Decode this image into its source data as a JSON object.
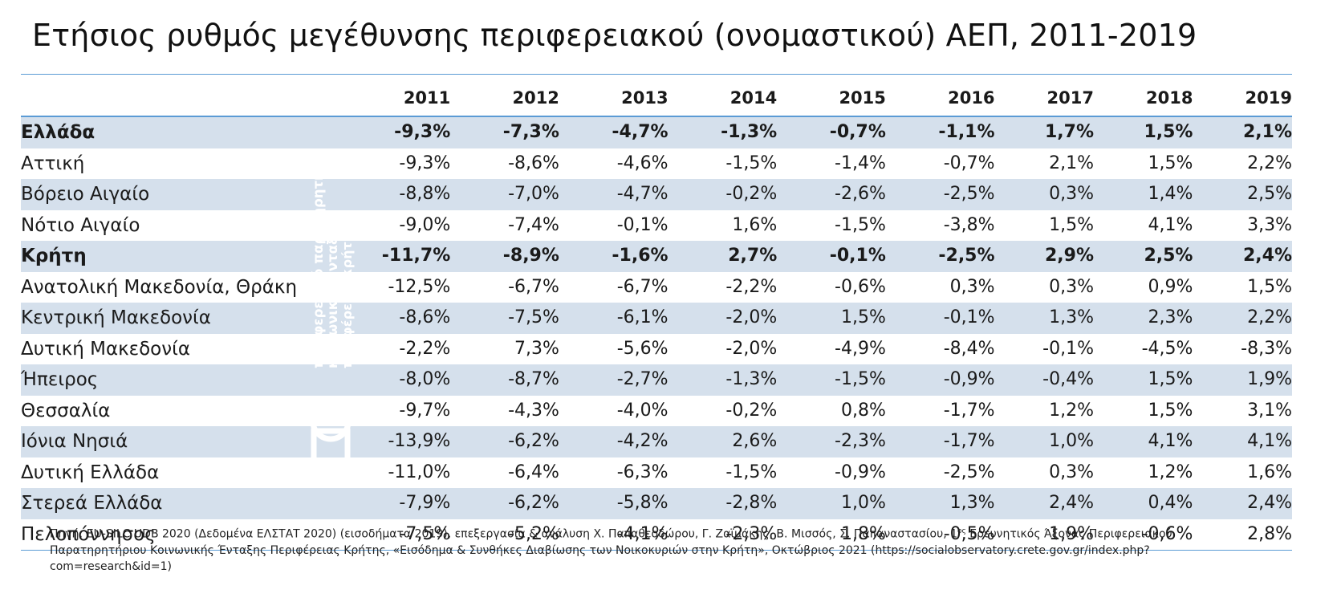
{
  "title": "Ετήσιος ρυθμός μεγέθυνσης περιφερειακού (ονομαστικού) ΑΕΠ, 2011-2019",
  "colors": {
    "accent_rule": "#5b9bd5",
    "row_band": "#d5e0ec",
    "watermark": "#ffffff"
  },
  "chart_data": {
    "type": "table",
    "title": "Ετήσιος ρυθμός μεγέθυνσης περιφερειακού (ονομαστικού) ΑΕΠ, 2011-2019",
    "columns": [
      "2011",
      "2012",
      "2013",
      "2014",
      "2015",
      "2016",
      "2017",
      "2018",
      "2019"
    ],
    "rows": [
      {
        "region": "Ελλάδα",
        "bold": true,
        "values": [
          "-9,3%",
          "-7,3%",
          "-4,7%",
          "-1,3%",
          "-0,7%",
          "-1,1%",
          "1,7%",
          "1,5%",
          "2,1%"
        ]
      },
      {
        "region": "Αττική",
        "bold": false,
        "values": [
          "-9,3%",
          "-8,6%",
          "-4,6%",
          "-1,5%",
          "-1,4%",
          "-0,7%",
          "2,1%",
          "1,5%",
          "2,2%"
        ]
      },
      {
        "region": "Βόρειο Αιγαίο",
        "bold": false,
        "values": [
          "-8,8%",
          "-7,0%",
          "-4,7%",
          "-0,2%",
          "-2,6%",
          "-2,5%",
          "0,3%",
          "1,4%",
          "2,5%"
        ]
      },
      {
        "region": "Νότιο Αιγαίο",
        "bold": false,
        "values": [
          "-9,0%",
          "-7,4%",
          "-0,1%",
          "1,6%",
          "-1,5%",
          "-3,8%",
          "1,5%",
          "4,1%",
          "3,3%"
        ]
      },
      {
        "region": "Κρήτη",
        "bold": true,
        "values": [
          "-11,7%",
          "-8,9%",
          "-1,6%",
          "2,7%",
          "-0,1%",
          "-2,5%",
          "2,9%",
          "2,5%",
          "2,4%"
        ]
      },
      {
        "region": "Ανατολική Μακεδονία, Θράκη",
        "bold": false,
        "values": [
          "-12,5%",
          "-6,7%",
          "-6,7%",
          "-2,2%",
          "-0,6%",
          "0,3%",
          "0,3%",
          "0,9%",
          "1,5%"
        ]
      },
      {
        "region": "Κεντρική Μακεδονία",
        "bold": false,
        "values": [
          "-8,6%",
          "-7,5%",
          "-6,1%",
          "-2,0%",
          "1,5%",
          "-0,1%",
          "1,3%",
          "2,3%",
          "2,2%"
        ]
      },
      {
        "region": "Δυτική Μακεδονία",
        "bold": false,
        "values": [
          "-2,2%",
          "7,3%",
          "-5,6%",
          "-2,0%",
          "-4,9%",
          "-8,4%",
          "-0,1%",
          "-4,5%",
          "-8,3%"
        ]
      },
      {
        "region": "Ήπειρος",
        "bold": false,
        "values": [
          "-8,0%",
          "-8,7%",
          "-2,7%",
          "-1,3%",
          "-1,5%",
          "-0,9%",
          "-0,4%",
          "1,5%",
          "1,9%"
        ]
      },
      {
        "region": "Θεσσαλία",
        "bold": false,
        "values": [
          "-9,7%",
          "-4,3%",
          "-4,0%",
          "-0,2%",
          "0,8%",
          "-1,7%",
          "1,2%",
          "1,5%",
          "3,1%"
        ]
      },
      {
        "region": "Ιόνια Νησιά",
        "bold": false,
        "values": [
          "-13,9%",
          "-6,2%",
          "-4,2%",
          "2,6%",
          "-2,3%",
          "-1,7%",
          "1,0%",
          "4,1%",
          "4,1%"
        ]
      },
      {
        "region": "Δυτική Ελλάδα",
        "bold": false,
        "values": [
          "-11,0%",
          "-6,4%",
          "-6,3%",
          "-1,5%",
          "-0,9%",
          "-2,5%",
          "0,3%",
          "1,2%",
          "1,6%"
        ]
      },
      {
        "region": "Στερεά Ελλάδα",
        "bold": false,
        "values": [
          "-7,9%",
          "-6,2%",
          "-5,8%",
          "-2,8%",
          "1,0%",
          "1,3%",
          "2,4%",
          "0,4%",
          "2,4%"
        ]
      },
      {
        "region": "Πελοπόννησος",
        "bold": false,
        "values": [
          "-7,5%",
          "-5,2%",
          "-4,1%",
          "-2,3%",
          "1,8%",
          "-0,5%",
          "1,9%",
          "-0,6%",
          "2,8%"
        ]
      }
    ]
  },
  "watermark": {
    "lines": [
      "περιφερειακό παρατηρητήριο",
      "κοινωνικής ένταξης",
      "περιφέρειας κρήτης"
    ]
  },
  "source": {
    "part1": "Πηγή: EU-SILC UDB 2020 (Δεδομένα ΕΛΣΤΑΤ 2020) (εισοδήματα 2019), επεξεργασία & ανάλυση Χ. Παπαθεοδώρου, Γ. Ζαϊμάκης, Β. Μισσός, Σ. Παπαναστασίου, 1",
    "sup": "ος",
    "part2": " Ερευνητικός Άξονας Περιφερειακού Παρατηρητήριου Κοινωνικής Ένταξης Περιφέρειας Κρήτης, «Εισόδημα & Συνθήκες Διαβίωσης των Νοικοκυριών στην Κρήτη», Οκτώβριος 2021 (https://socialobservatory.crete.gov.gr/index.php?com=research&id=1)"
  }
}
